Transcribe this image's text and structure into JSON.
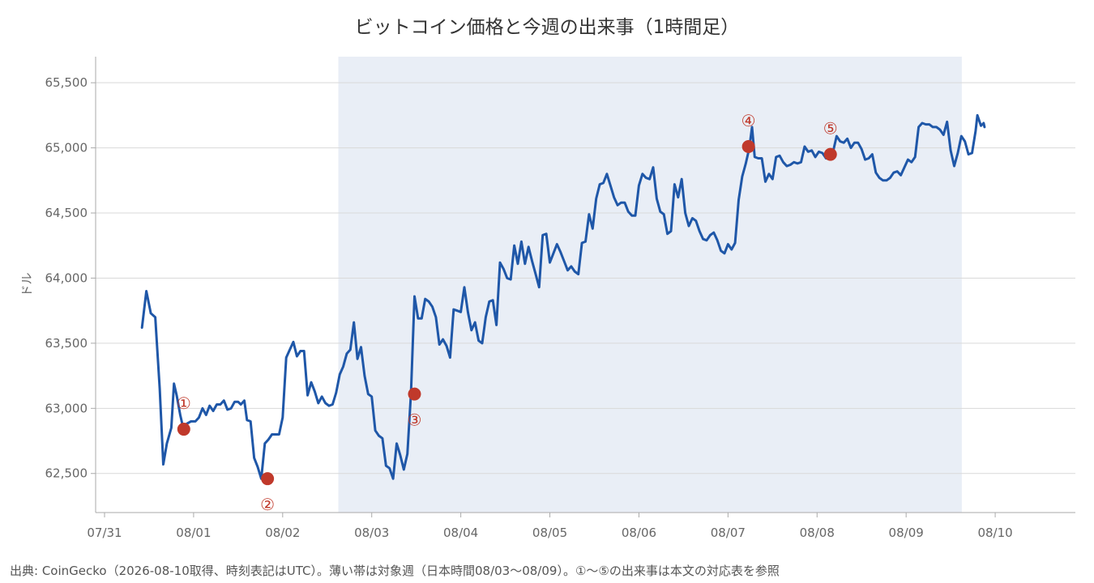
{
  "chart_data": {
    "type": "line",
    "title": "ビットコイン価格と今週の出来事（1時間足）",
    "ylabel": "ドル",
    "xlabel": "",
    "xlim": [
      -0.1,
      10.9
    ],
    "ylim": [
      62200,
      65700
    ],
    "x_ticks": [
      {
        "x": 0,
        "label": "07/31"
      },
      {
        "x": 1,
        "label": "08/01"
      },
      {
        "x": 2,
        "label": "08/02"
      },
      {
        "x": 3,
        "label": "08/03"
      },
      {
        "x": 4,
        "label": "08/04"
      },
      {
        "x": 5,
        "label": "08/05"
      },
      {
        "x": 6,
        "label": "08/06"
      },
      {
        "x": 7,
        "label": "08/07"
      },
      {
        "x": 8,
        "label": "08/08"
      },
      {
        "x": 9,
        "label": "08/09"
      },
      {
        "x": 10,
        "label": "08/10"
      }
    ],
    "y_ticks": [
      {
        "y": 62500,
        "label": "62,500"
      },
      {
        "y": 63000,
        "label": "63,000"
      },
      {
        "y": 63500,
        "label": "63,500"
      },
      {
        "y": 64000,
        "label": "64,000"
      },
      {
        "y": 64500,
        "label": "64,500"
      },
      {
        "y": 65000,
        "label": "65,000"
      },
      {
        "y": 65500,
        "label": "65,500"
      }
    ],
    "grid": "horizontal",
    "shaded_period": {
      "x0": 2.625,
      "x1": 9.625,
      "color": "#e9eef6"
    },
    "series": [
      {
        "color": "#1f57a8",
        "points": [
          [
            0.42,
            63620
          ],
          [
            0.47,
            63900
          ],
          [
            0.52,
            63730
          ],
          [
            0.57,
            63700
          ],
          [
            0.62,
            63150
          ],
          [
            0.66,
            62570
          ],
          [
            0.7,
            62730
          ],
          [
            0.75,
            62850
          ],
          [
            0.78,
            63190
          ],
          [
            0.81,
            63100
          ],
          [
            0.85,
            62950
          ],
          [
            0.88,
            62860
          ],
          [
            0.92,
            62880
          ],
          [
            0.97,
            62900
          ],
          [
            1.02,
            62900
          ],
          [
            1.06,
            62930
          ],
          [
            1.1,
            63000
          ],
          [
            1.14,
            62950
          ],
          [
            1.18,
            63020
          ],
          [
            1.22,
            62980
          ],
          [
            1.26,
            63030
          ],
          [
            1.3,
            63030
          ],
          [
            1.34,
            63060
          ],
          [
            1.38,
            62990
          ],
          [
            1.42,
            63000
          ],
          [
            1.46,
            63050
          ],
          [
            1.5,
            63050
          ],
          [
            1.53,
            63030
          ],
          [
            1.57,
            63060
          ],
          [
            1.6,
            62910
          ],
          [
            1.64,
            62900
          ],
          [
            1.68,
            62620
          ],
          [
            1.72,
            62550
          ],
          [
            1.76,
            62460
          ],
          [
            1.8,
            62730
          ],
          [
            1.84,
            62760
          ],
          [
            1.88,
            62800
          ],
          [
            1.92,
            62800
          ],
          [
            1.96,
            62800
          ],
          [
            2.0,
            62930
          ],
          [
            2.04,
            63390
          ],
          [
            2.08,
            63450
          ],
          [
            2.12,
            63510
          ],
          [
            2.16,
            63400
          ],
          [
            2.2,
            63440
          ],
          [
            2.24,
            63440
          ],
          [
            2.28,
            63100
          ],
          [
            2.32,
            63200
          ],
          [
            2.36,
            63130
          ],
          [
            2.4,
            63040
          ],
          [
            2.44,
            63090
          ],
          [
            2.48,
            63040
          ],
          [
            2.52,
            63020
          ],
          [
            2.56,
            63030
          ],
          [
            2.6,
            63120
          ],
          [
            2.64,
            63260
          ],
          [
            2.68,
            63320
          ],
          [
            2.72,
            63420
          ],
          [
            2.76,
            63450
          ],
          [
            2.8,
            63660
          ],
          [
            2.84,
            63380
          ],
          [
            2.88,
            63470
          ],
          [
            2.92,
            63250
          ],
          [
            2.96,
            63110
          ],
          [
            3.0,
            63090
          ],
          [
            3.04,
            62830
          ],
          [
            3.08,
            62790
          ],
          [
            3.12,
            62770
          ],
          [
            3.16,
            62560
          ],
          [
            3.2,
            62540
          ],
          [
            3.24,
            62460
          ],
          [
            3.28,
            62730
          ],
          [
            3.32,
            62640
          ],
          [
            3.36,
            62530
          ],
          [
            3.4,
            62650
          ],
          [
            3.44,
            63110
          ],
          [
            3.48,
            63860
          ],
          [
            3.52,
            63690
          ],
          [
            3.56,
            63690
          ],
          [
            3.6,
            63840
          ],
          [
            3.64,
            63820
          ],
          [
            3.68,
            63780
          ],
          [
            3.72,
            63700
          ],
          [
            3.76,
            63490
          ],
          [
            3.8,
            63530
          ],
          [
            3.84,
            63480
          ],
          [
            3.88,
            63390
          ],
          [
            3.92,
            63760
          ],
          [
            3.96,
            63750
          ],
          [
            4.0,
            63740
          ],
          [
            4.04,
            63930
          ],
          [
            4.08,
            63740
          ],
          [
            4.12,
            63600
          ],
          [
            4.16,
            63660
          ],
          [
            4.2,
            63520
          ],
          [
            4.24,
            63500
          ],
          [
            4.28,
            63700
          ],
          [
            4.32,
            63820
          ],
          [
            4.36,
            63830
          ],
          [
            4.4,
            63640
          ],
          [
            4.44,
            64120
          ],
          [
            4.48,
            64070
          ],
          [
            4.52,
            64000
          ],
          [
            4.56,
            63990
          ],
          [
            4.6,
            64250
          ],
          [
            4.64,
            64110
          ],
          [
            4.68,
            64280
          ],
          [
            4.72,
            64110
          ],
          [
            4.76,
            64240
          ],
          [
            4.8,
            64130
          ],
          [
            4.84,
            64030
          ],
          [
            4.88,
            63930
          ],
          [
            4.92,
            64330
          ],
          [
            4.96,
            64340
          ],
          [
            5.0,
            64120
          ],
          [
            5.04,
            64190
          ],
          [
            5.08,
            64260
          ],
          [
            5.12,
            64200
          ],
          [
            5.16,
            64130
          ],
          [
            5.2,
            64060
          ],
          [
            5.24,
            64090
          ],
          [
            5.28,
            64050
          ],
          [
            5.32,
            64030
          ],
          [
            5.36,
            64270
          ],
          [
            5.4,
            64280
          ],
          [
            5.44,
            64490
          ],
          [
            5.48,
            64380
          ],
          [
            5.52,
            64610
          ],
          [
            5.56,
            64720
          ],
          [
            5.6,
            64730
          ],
          [
            5.64,
            64800
          ],
          [
            5.68,
            64710
          ],
          [
            5.72,
            64620
          ],
          [
            5.76,
            64560
          ],
          [
            5.8,
            64580
          ],
          [
            5.84,
            64580
          ],
          [
            5.88,
            64510
          ],
          [
            5.92,
            64480
          ],
          [
            5.96,
            64480
          ],
          [
            6.0,
            64710
          ],
          [
            6.04,
            64800
          ],
          [
            6.08,
            64770
          ],
          [
            6.12,
            64760
          ],
          [
            6.16,
            64850
          ],
          [
            6.2,
            64610
          ],
          [
            6.24,
            64510
          ],
          [
            6.28,
            64490
          ],
          [
            6.32,
            64340
          ],
          [
            6.36,
            64360
          ],
          [
            6.4,
            64720
          ],
          [
            6.44,
            64620
          ],
          [
            6.48,
            64760
          ],
          [
            6.52,
            64500
          ],
          [
            6.56,
            64400
          ],
          [
            6.6,
            64460
          ],
          [
            6.64,
            64440
          ],
          [
            6.68,
            64360
          ],
          [
            6.72,
            64300
          ],
          [
            6.76,
            64290
          ],
          [
            6.8,
            64330
          ],
          [
            6.84,
            64350
          ],
          [
            6.88,
            64290
          ],
          [
            6.92,
            64210
          ],
          [
            6.96,
            64190
          ],
          [
            7.0,
            64260
          ],
          [
            7.04,
            64220
          ],
          [
            7.08,
            64270
          ],
          [
            7.12,
            64600
          ],
          [
            7.16,
            64780
          ],
          [
            7.2,
            64880
          ],
          [
            7.24,
            65000
          ],
          [
            7.27,
            65160
          ],
          [
            7.3,
            64930
          ],
          [
            7.34,
            64920
          ],
          [
            7.38,
            64920
          ],
          [
            7.42,
            64740
          ],
          [
            7.46,
            64800
          ],
          [
            7.5,
            64760
          ],
          [
            7.54,
            64930
          ],
          [
            7.58,
            64940
          ],
          [
            7.62,
            64890
          ],
          [
            7.66,
            64860
          ],
          [
            7.7,
            64870
          ],
          [
            7.74,
            64890
          ],
          [
            7.78,
            64880
          ],
          [
            7.82,
            64890
          ],
          [
            7.86,
            65010
          ],
          [
            7.9,
            64970
          ],
          [
            7.94,
            64980
          ],
          [
            7.98,
            64930
          ],
          [
            8.02,
            64970
          ],
          [
            8.06,
            64960
          ],
          [
            8.1,
            64920
          ],
          [
            8.14,
            64980
          ],
          [
            8.18,
            64970
          ],
          [
            8.22,
            65090
          ],
          [
            8.26,
            65050
          ],
          [
            8.3,
            65040
          ],
          [
            8.34,
            65070
          ],
          [
            8.38,
            65000
          ],
          [
            8.42,
            65040
          ],
          [
            8.46,
            65040
          ],
          [
            8.5,
            64990
          ],
          [
            8.54,
            64910
          ],
          [
            8.58,
            64920
          ],
          [
            8.62,
            64950
          ],
          [
            8.66,
            64810
          ],
          [
            8.7,
            64770
          ],
          [
            8.74,
            64750
          ],
          [
            8.78,
            64750
          ],
          [
            8.82,
            64770
          ],
          [
            8.86,
            64810
          ],
          [
            8.9,
            64820
          ],
          [
            8.94,
            64790
          ],
          [
            8.98,
            64850
          ],
          [
            9.02,
            64910
          ],
          [
            9.06,
            64890
          ],
          [
            9.1,
            64930
          ],
          [
            9.14,
            65160
          ],
          [
            9.18,
            65190
          ],
          [
            9.22,
            65180
          ],
          [
            9.26,
            65180
          ],
          [
            9.3,
            65160
          ],
          [
            9.34,
            65160
          ],
          [
            9.38,
            65140
          ],
          [
            9.42,
            65100
          ],
          [
            9.46,
            65200
          ],
          [
            9.5,
            64980
          ],
          [
            9.54,
            64860
          ],
          [
            9.58,
            64960
          ],
          [
            9.62,
            65090
          ],
          [
            9.66,
            65050
          ],
          [
            9.7,
            64950
          ],
          [
            9.74,
            64960
          ],
          [
            9.78,
            65130
          ],
          [
            9.8,
            65250
          ],
          [
            9.84,
            65170
          ],
          [
            9.87,
            65190
          ],
          [
            9.88,
            65160
          ]
        ]
      }
    ],
    "events": [
      {
        "label": "①",
        "x": 0.89,
        "y": 62840,
        "label_pos": "above"
      },
      {
        "label": "②",
        "x": 1.83,
        "y": 62460,
        "label_pos": "below"
      },
      {
        "label": "③",
        "x": 3.48,
        "y": 63110,
        "label_pos": "below"
      },
      {
        "label": "④",
        "x": 7.23,
        "y": 65010,
        "label_pos": "above"
      },
      {
        "label": "⑤",
        "x": 8.15,
        "y": 64950,
        "label_pos": "above"
      }
    ],
    "event_color": "#c0392b",
    "grid_color": "#d9d9d9",
    "axis_color": "#aaaaaa"
  },
  "note": "出典: CoinGecko（2026-08-10取得、時刻表記はUTC）。薄い帯は対象週（日本時間08/03〜08/09）。①〜⑤の出来事は本文の対応表を参照"
}
